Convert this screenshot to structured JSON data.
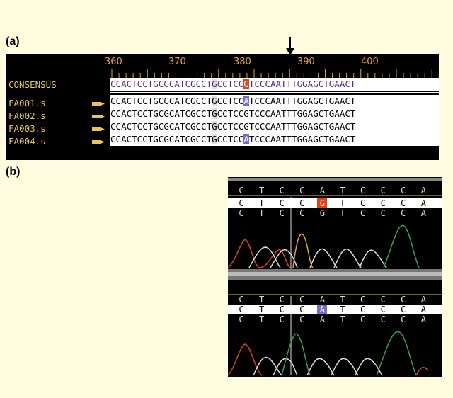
{
  "panel_a_label": "(a)",
  "panel_b_label": "(b)",
  "ruler": {
    "ticks": [
      "360",
      "370",
      "380",
      "390",
      "400"
    ]
  },
  "consensus": {
    "name": "CONSENSUS",
    "sequence": "CCACTCCTGCGCATCGCCTGCCTCCGTCCCAATTTGGAGCTGAACT"
  },
  "reads": [
    {
      "name": "FA001.s",
      "sequence": "CCACTCCTGCGCATCGCCTGCCTCCATCCCAATTTGGAGCTGAACT"
    },
    {
      "name": "FA002.s",
      "sequence": "CCACTCCTGCGCATCGCCTGCCTCCGTCCCAATTTGGAGCTGAACT"
    },
    {
      "name": "FA003.s",
      "sequence": "CCACTCCTGCGCATCGCCTGCCTCCGTCCCAATTTGGAGCTGAACT"
    },
    {
      "name": "FA004.s",
      "sequence": "CCACTCCTGCGCATCGCCTGCCTCCATCCCAATTTGGAGCTGAACT"
    }
  ],
  "chromatogram_top": {
    "ref_bases": [
      "C",
      "T",
      "C",
      "C",
      "A",
      "T",
      "C",
      "C",
      "C",
      "A"
    ],
    "read_bases": [
      "C",
      "T",
      "C",
      "C",
      "G",
      "T",
      "C",
      "C",
      "C",
      "A"
    ],
    "call_bases": [
      "C",
      "T",
      "C",
      "C",
      "G",
      "T",
      "C",
      "C",
      "C",
      "A"
    ]
  },
  "chromatogram_bottom": {
    "ref_bases": [
      "C",
      "T",
      "C",
      "C",
      "A",
      "T",
      "C",
      "C",
      "C",
      "A"
    ],
    "read_bases": [
      "C",
      "T",
      "C",
      "C",
      "A",
      "T",
      "C",
      "C",
      "C",
      "A"
    ],
    "call_bases": [
      "C",
      "T",
      "C",
      "C",
      "A",
      "T",
      "C",
      "C",
      "C",
      "A"
    ]
  },
  "colors": {
    "background": "#fffce0",
    "ruler": "#e0a33a",
    "name": "#e6c45a",
    "snp_g": "#e0401a",
    "snp_a": "#7a6ac0"
  }
}
